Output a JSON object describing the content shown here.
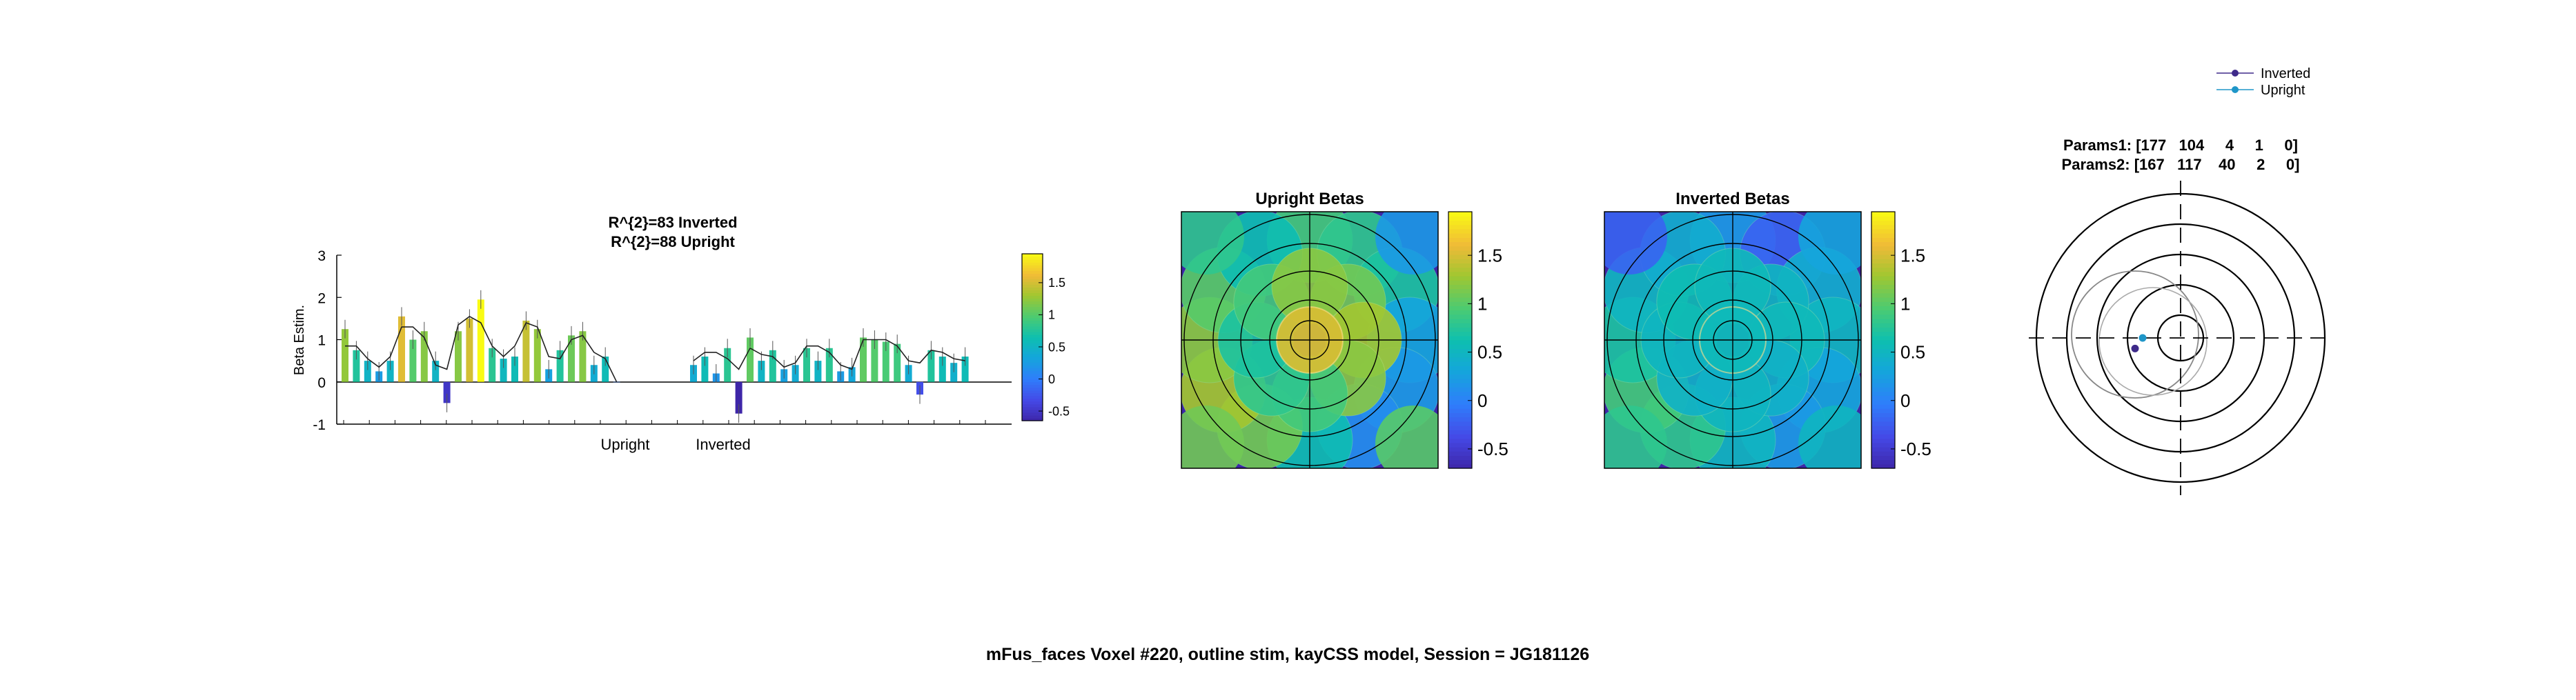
{
  "figure_title": "mFus_faces Voxel #220, outline stim, kayCSS model, Session = JG181126",
  "colors": {
    "inverted_dot": "#3e2a8a",
    "upright_dot": "#1f96c8",
    "background": "#ffffff",
    "axis": "#000000"
  },
  "chart_data": [
    {
      "type": "bar",
      "title_lines": [
        "R^{2}=83 Inverted",
        "R^{2}=88 Upright"
      ],
      "ylabel": "Beta Estim.",
      "ylim": [
        -1,
        3
      ],
      "yticks": [
        -1,
        0,
        1,
        2,
        3
      ],
      "group_labels": [
        "Upright",
        "Inverted"
      ],
      "error_bars": true,
      "model_fit_line": true,
      "series": [
        {
          "name": "Upright",
          "values": [
            1.25,
            0.75,
            0.5,
            0.25,
            0.5,
            1.55,
            1.0,
            1.2,
            0.5,
            -0.5,
            1.2,
            1.5,
            1.95,
            0.8,
            0.55,
            0.6,
            1.45,
            1.25,
            0.3,
            0.75,
            1.1,
            1.2,
            0.4,
            0.6,
            0.0
          ]
        },
        {
          "name": "Inverted",
          "values": [
            0.4,
            0.6,
            0.2,
            0.8,
            -0.75,
            1.05,
            0.5,
            0.75,
            0.3,
            0.4,
            0.8,
            0.5,
            0.8,
            0.25,
            0.35,
            1.05,
            1.0,
            0.95,
            0.9,
            0.4,
            -0.3,
            0.75,
            0.6,
            0.45,
            0.6
          ]
        }
      ],
      "model_fit": {
        "upright": [
          0.85,
          0.85,
          0.55,
          0.35,
          0.6,
          1.3,
          1.3,
          1.05,
          0.4,
          0.3,
          1.35,
          1.55,
          1.4,
          0.85,
          0.6,
          0.85,
          1.4,
          1.3,
          0.6,
          0.55,
          1.0,
          1.1,
          0.7,
          0.55,
          0.0
        ],
        "inverted": [
          0.5,
          0.7,
          0.7,
          0.55,
          0.3,
          0.8,
          0.65,
          0.6,
          0.35,
          0.45,
          0.85,
          0.85,
          0.7,
          0.4,
          0.3,
          1.0,
          1.0,
          1.0,
          0.85,
          0.5,
          0.45,
          0.75,
          0.7,
          0.55,
          0.5
        ]
      },
      "colorbar": {
        "ticks": [
          -0.5,
          0,
          0.5,
          1,
          1.5
        ],
        "range": [
          -0.65,
          1.95
        ]
      }
    },
    {
      "type": "heatmap",
      "title": "Upright Betas",
      "colormap": "parula",
      "colorbar": {
        "ticks": [
          -0.5,
          0,
          0.5,
          1,
          1.5
        ],
        "range": [
          -0.7,
          1.95
        ]
      },
      "description_values": {
        "rings": [
          0,
          1,
          2
        ],
        "ring0": [
          1.5
        ],
        "ring1": [
          1.1,
          1.3,
          1.2,
          0.9,
          0.8,
          0.7,
          0.9,
          1.2
        ],
        "ring2": [
          0.9,
          0.8,
          0.7,
          0.3,
          0.2,
          0.1,
          0.6,
          1.1,
          1.3,
          1.2,
          1.0,
          0.6
        ]
      }
    },
    {
      "type": "heatmap",
      "title": "Inverted Betas",
      "colormap": "parula",
      "colorbar": {
        "ticks": [
          -0.5,
          0,
          0.5,
          1,
          1.5
        ],
        "range": [
          -0.7,
          1.95
        ]
      },
      "description_values": {
        "rings": [
          0,
          1,
          2
        ],
        "ring0": [
          0.55
        ],
        "ring1": [
          0.5,
          0.55,
          0.45,
          0.5,
          0.45,
          0.5,
          0.6,
          0.55
        ],
        "ring2": [
          0.2,
          -0.2,
          0.4,
          0.5,
          0.3,
          0.2,
          0.5,
          0.8,
          0.9,
          0.7,
          0.5,
          0.4
        ]
      }
    },
    {
      "type": "scatter",
      "title_lines": [
        "Params1: [177   104     4     1     0]",
        "Params2: [167   117    40     2     0]"
      ],
      "legend": [
        {
          "name": "Inverted",
          "color": "#3e2a8a"
        },
        {
          "name": "Upright",
          "color": "#1f96c8"
        }
      ],
      "legend_position": "top-right",
      "points": [
        {
          "series": "Inverted",
          "x": -0.3,
          "y": -0.07
        },
        {
          "series": "Upright",
          "x": -0.25,
          "y": 0.0
        }
      ],
      "reference_circles": [
        0.15,
        0.35,
        0.55,
        0.75,
        0.95
      ]
    }
  ]
}
